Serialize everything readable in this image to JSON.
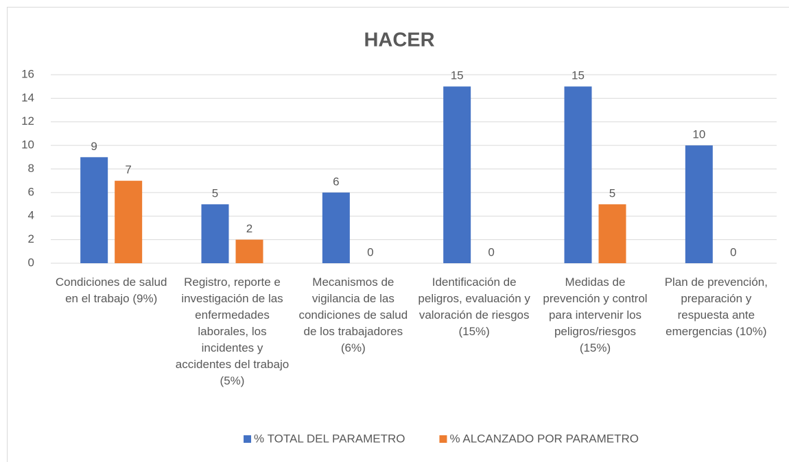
{
  "chart_data": {
    "type": "bar",
    "title": "HACER",
    "categories": [
      "Condiciones de salud en el trabajo (9%)",
      "Registro, reporte e investigación de las enfermedades laborales, los incidentes y accidentes del trabajo (5%)",
      "Mecanismos de vigilancia de las condiciones de salud de los trabajadores (6%)",
      "Identificación de peligros, evaluación y valoración de riesgos (15%)",
      "Medidas de prevención y control para intervenir los peligros/riesgos (15%)",
      "Plan de prevención, preparación y respuesta ante emergencias (10%)"
    ],
    "series": [
      {
        "name": "% TOTAL DEL PARAMETRO",
        "color": "#4472c4",
        "values": [
          9,
          5,
          6,
          15,
          15,
          10
        ]
      },
      {
        "name": "% ALCANZADO POR PARAMETRO",
        "color": "#ed7d31",
        "values": [
          7,
          2,
          0,
          0,
          5,
          0
        ]
      }
    ],
    "ylim": [
      0,
      16
    ],
    "yticks": [
      0,
      2,
      4,
      6,
      8,
      10,
      12,
      14,
      16
    ],
    "grid": true,
    "legend": "bottom"
  }
}
